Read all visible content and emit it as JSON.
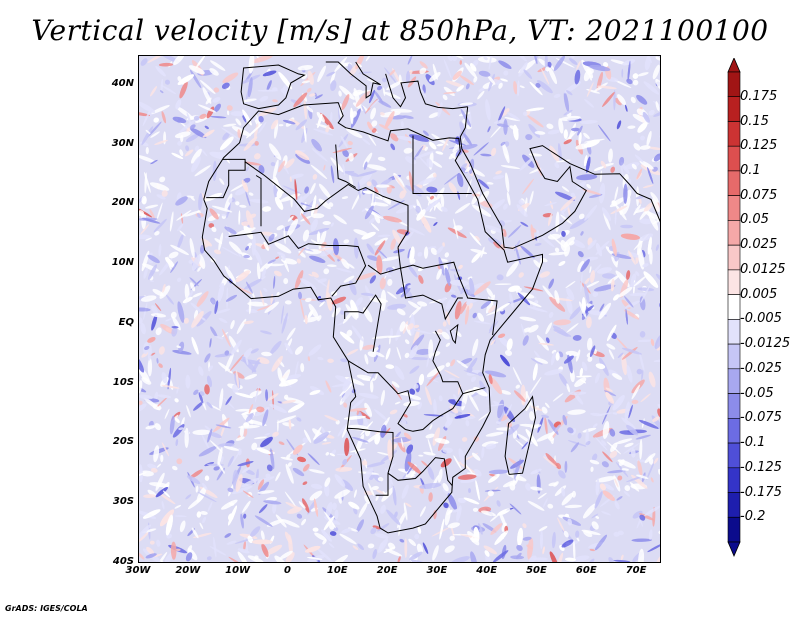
{
  "title": "Vertical velocity [m/s] at 850hPa, VT: 2021100100",
  "credit": "GrADS: IGES/COLA",
  "map": {
    "lat_range": [
      -40,
      45
    ],
    "lon_range": [
      -30,
      75
    ],
    "lat_labels": [
      "40N",
      "30N",
      "20N",
      "10N",
      "EQ",
      "10S",
      "20S",
      "30S",
      "40S"
    ],
    "lon_labels": [
      "30W",
      "20W",
      "10W",
      "0",
      "10E",
      "20E",
      "30E",
      "40E",
      "50E",
      "60E",
      "70E"
    ],
    "land_outline": "coastlines-and-borders-icon"
  },
  "colorbar": {
    "labels": [
      "0.175",
      "0.15",
      "0.125",
      "0.1",
      "0.075",
      "0.05",
      "0.025",
      "0.0125",
      "0.005",
      "-0.005",
      "-0.0125",
      "-0.025",
      "-0.05",
      "-0.075",
      "-0.1",
      "-0.125",
      "-0.175",
      "-0.2"
    ],
    "colors": [
      "#a11515",
      "#b82020",
      "#cc3333",
      "#dd4f4f",
      "#e66a6a",
      "#ef8888",
      "#f5a8a8",
      "#f9c8c8",
      "#fce4e4",
      "#ffffff",
      "#e2e2fb",
      "#c6c6f6",
      "#a8a8f0",
      "#8c8cea",
      "#6c6ce3",
      "#4f4fd8",
      "#3434c8",
      "#1e1eae",
      "#0b0b8c"
    ]
  },
  "colors": {
    "positive": "#c83232",
    "negative": "#3c3cc8",
    "neutral": "#ffffff"
  }
}
